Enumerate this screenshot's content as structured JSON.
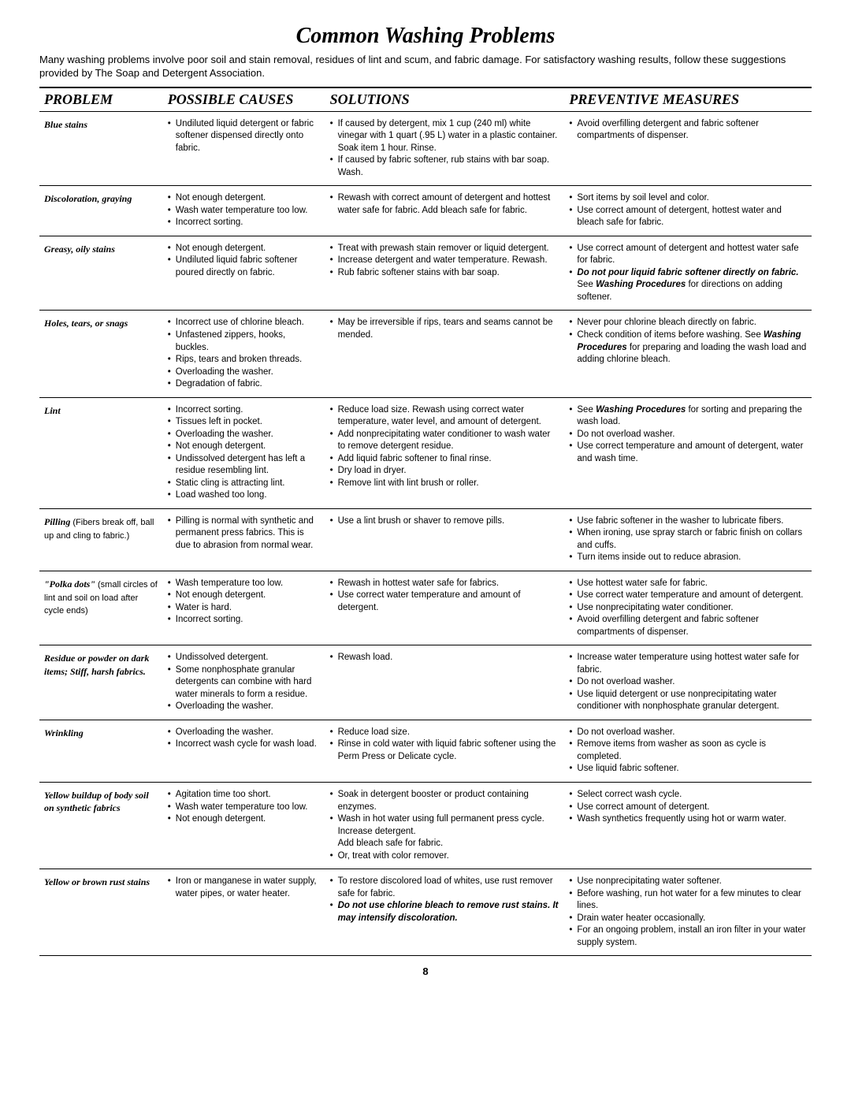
{
  "title": "Common Washing Problems",
  "intro": "Many washing problems involve poor soil and stain removal, residues of lint and scum, and fabric damage. For satisfactory washing results, follow these suggestions provided by The Soap and Detergent Association.",
  "headers": {
    "problem": "PROBLEM",
    "causes": "POSSIBLE CAUSES",
    "solutions": "SOLUTIONS",
    "prevent": "PREVENTIVE  MEASURES"
  },
  "rows": [
    {
      "problem": "Blue stains",
      "causes": [
        "Undiluted liquid detergent or fabric softener dispensed directly onto fabric."
      ],
      "solutions": [
        "If caused by detergent, mix 1 cup (240 ml) white vinegar with 1 quart (.95 L) water in a plastic container. Soak item 1 hour. Rinse.",
        "If caused by fabric softener, rub stains with bar soap. Wash."
      ],
      "prevent": [
        "Avoid overfilling detergent and fabric softener compartments of dispenser."
      ]
    },
    {
      "problem": "Discoloration, graying",
      "causes": [
        "Not enough detergent.",
        "Wash water temperature too low.",
        "Incorrect sorting."
      ],
      "solutions": [
        "Rewash with correct amount of detergent and hottest water safe for fabric. Add bleach safe for fabric."
      ],
      "prevent": [
        "Sort items by soil level and color.",
        "Use correct amount of detergent, hottest water and bleach safe for fabric."
      ]
    },
    {
      "problem": "Greasy, oily stains",
      "causes": [
        "Not enough detergent.",
        "Undiluted liquid fabric softener poured directly on fabric."
      ],
      "solutions": [
        "Treat with prewash stain remover or liquid detergent.",
        "Increase detergent and water temperature. Rewash.",
        "Rub fabric softener stains with bar soap."
      ],
      "prevent": [
        "Use correct  amount of detergent and hottest water safe for fabric.",
        "<span class=\"bib\">Do not pour liquid fabric softener directly on fabric.</span> See <span class=\"bib\">Washing Procedures</span> for directions on adding softener."
      ]
    },
    {
      "problem": "Holes, tears, or snags",
      "causes": [
        "Incorrect use of chlorine bleach.",
        "Unfastened zippers, hooks, buckles.",
        "Rips, tears and broken threads.",
        "Overloading the washer.",
        "Degradation of fabric."
      ],
      "solutions": [
        "May be irreversible if rips, tears and seams cannot be mended."
      ],
      "prevent": [
        "Never pour chlorine bleach directly on fabric.",
        "Check condition of items before washing. See <span class=\"bib\">Washing Procedures</span> for preparing and loading the wash load and adding chlorine bleach."
      ]
    },
    {
      "problem": "Lint",
      "causes": [
        "Incorrect sorting.",
        "Tissues left in pocket.",
        "Overloading the washer.",
        "Not  enough detergent.",
        "Undissolved detergent has left a residue resembling lint.",
        "Static cling is attracting lint.",
        "Load washed too long."
      ],
      "solutions": [
        "Reduce load size. Rewash using correct water temperature, water level, and amount of detergent.",
        "Add  nonprecipitating water conditioner to wash water to remove detergent residue.",
        " Add liquid fabric softener to final rinse.",
        "Dry load in dryer.",
        "Remove lint with lint brush or roller."
      ],
      "prevent": [
        "See <span class=\"bib\">Washing Procedures</span> for sorting and preparing the wash load.",
        "Do not overload washer.",
        "Use correct temperature and amount of detergent, water and wash time."
      ]
    },
    {
      "problem": "Pilling",
      "sub": "(Fibers break off, ball up and cling to fabric.)",
      "causes": [
        "Pilling is normal with synthetic and permanent press fabrics. This is due to abrasion from  normal wear."
      ],
      "solutions": [
        "Use a lint brush or shaver to remove pills."
      ],
      "prevent": [
        "Use fabric softener in the washer to lubricate fibers.",
        "When ironing, use spray starch or fabric finish on collars  and cuffs.",
        "Turn items inside out to reduce abrasion."
      ]
    },
    {
      "problem": "\"Polka dots\"",
      "sub": "(small circles  of lint and soil on load after cycle ends)",
      "causes": [
        "Wash temperature  too low.",
        "Not enough detergent.",
        "Water is hard.",
        "Incorrect sorting."
      ],
      "solutions": [
        "Rewash in hottest water safe for fabrics.",
        "Use correct water temperature and amount of detergent."
      ],
      "prevent": [
        "Use hottest water safe for fabric.",
        "Use correct water temperature  and amount of detergent.",
        "Use nonprecipitating water conditioner.",
        "Avoid overfilling detergent and fabric softener compartments of dispenser."
      ]
    },
    {
      "problem": "Residue or powder on dark items; Stiff, harsh fabrics.",
      "causes": [
        "Undissolved detergent.",
        "Some nonphosphate granular detergents can combine with hard water minerals to form a residue.",
        "Overloading the washer."
      ],
      "solutions": [
        "Rewash load."
      ],
      "prevent": [
        "Increase water temperature using hottest water safe for fabric.",
        "Do not overload washer.",
        "Use liquid detergent or use nonprecipitating water conditioner with nonphosphate granular detergent."
      ]
    },
    {
      "problem": "Wrinkling",
      "causes": [
        "Overloading the washer.",
        "Incorrect wash cycle for wash load."
      ],
      "solutions": [
        "Reduce load size.",
        "Rinse in cold water with liquid fabric softener using the Perm Press or Delicate cycle."
      ],
      "prevent": [
        "Do not overload washer.",
        "Remove items from washer as soon as cycle is completed.",
        "Use liquid fabric softener."
      ]
    },
    {
      "problem": "Yellow buildup of body soil on synthetic fabrics",
      "causes": [
        "Agitation time too short.",
        "Wash water temperature too low.",
        "Not enough detergent."
      ],
      "solutions": [
        "Soak in detergent booster or product containing enzymes.",
        "Wash in hot water using full permanent press cycle. Increase detergent.<br>Add bleach safe for fabric.",
        "Or, treat with color remover."
      ],
      "prevent": [
        "Select correct wash cycle.",
        "Use correct amount of detergent.",
        "Wash synthetics frequently using hot or warm water."
      ]
    },
    {
      "problem": "Yellow or brown rust stains",
      "causes": [
        "Iron or manganese in water supply, water pipes, or water heater."
      ],
      "solutions": [
        "To restore discolored load of whites, use rust remover safe for fabric.",
        "<span class=\"bib\">Do not use chlorine bleach to remove rust stains. It may intensify discoloration.</span>"
      ],
      "prevent": [
        "Use nonprecipitating water softener.",
        "Before washing, run hot water for a few minutes to clear lines.",
        "Drain water heater occasionally.",
        "For an ongoing problem, install an iron filter in your water supply system."
      ]
    }
  ],
  "pageNumber": "8"
}
